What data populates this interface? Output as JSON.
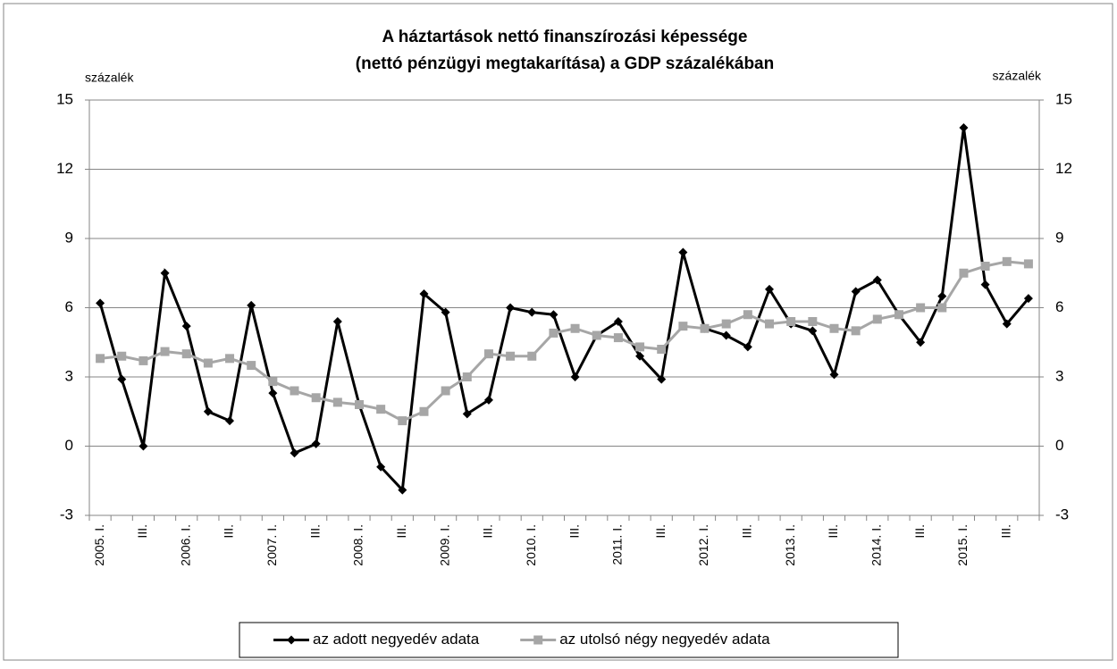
{
  "chart_data": {
    "type": "line",
    "title": "A háztartások nettó finanszírozási képessége",
    "subtitle": "(nettó pénzügyi megtakarítása) a GDP százalékában",
    "y_label": "százalék",
    "y2_label": "százalék",
    "categories": [
      "2005. I.",
      null,
      "III.",
      null,
      "2006. I.",
      null,
      "III.",
      null,
      "2007. I.",
      null,
      "III.",
      null,
      "2008. I.",
      null,
      "III.",
      null,
      "2009. I.",
      null,
      "III.",
      null,
      "2010. I.",
      null,
      "III.",
      null,
      "2011. I.",
      null,
      "III.",
      null,
      "2012. I.",
      null,
      "III.",
      null,
      "2013. I.",
      null,
      "III.",
      null,
      "2014. I.",
      null,
      "III.",
      null,
      "2015. I.",
      null,
      "III.",
      null
    ],
    "series": [
      {
        "name": "az adott negyedév adata",
        "color": "#000000",
        "marker": "diamond",
        "values": [
          6.2,
          2.9,
          0.0,
          7.5,
          5.2,
          1.5,
          1.1,
          6.1,
          2.3,
          -0.3,
          0.1,
          5.4,
          1.8,
          -0.9,
          -1.9,
          6.6,
          5.8,
          1.4,
          2.0,
          6.0,
          5.8,
          5.7,
          3.0,
          4.8,
          5.4,
          3.9,
          2.9,
          8.4,
          5.1,
          4.8,
          4.3,
          6.8,
          5.3,
          5.0,
          3.1,
          6.7,
          7.2,
          5.7,
          4.5,
          6.5,
          13.8,
          7.0,
          5.3,
          6.4
        ]
      },
      {
        "name": "az utolsó négy negyedév adata",
        "color": "#a6a6a6",
        "marker": "square",
        "values": [
          3.8,
          3.9,
          3.7,
          4.1,
          4.0,
          3.6,
          3.8,
          3.5,
          2.8,
          2.4,
          2.1,
          1.9,
          1.8,
          1.6,
          1.1,
          1.5,
          2.4,
          3.0,
          4.0,
          3.9,
          3.9,
          4.9,
          5.1,
          4.8,
          4.7,
          4.3,
          4.2,
          5.2,
          5.1,
          5.3,
          5.7,
          5.3,
          5.4,
          5.4,
          5.1,
          5.0,
          5.5,
          5.7,
          6.0,
          6.0,
          7.5,
          7.8,
          8.0,
          7.9
        ]
      }
    ],
    "ylim": [
      -3,
      15
    ],
    "yticks": [
      -3,
      0,
      3,
      6,
      9,
      12,
      15
    ],
    "y2lim": [
      -3,
      15
    ],
    "y2ticks": [
      -3,
      0,
      3,
      6,
      9,
      12,
      15
    ],
    "grid": true,
    "legend": "bottom"
  }
}
